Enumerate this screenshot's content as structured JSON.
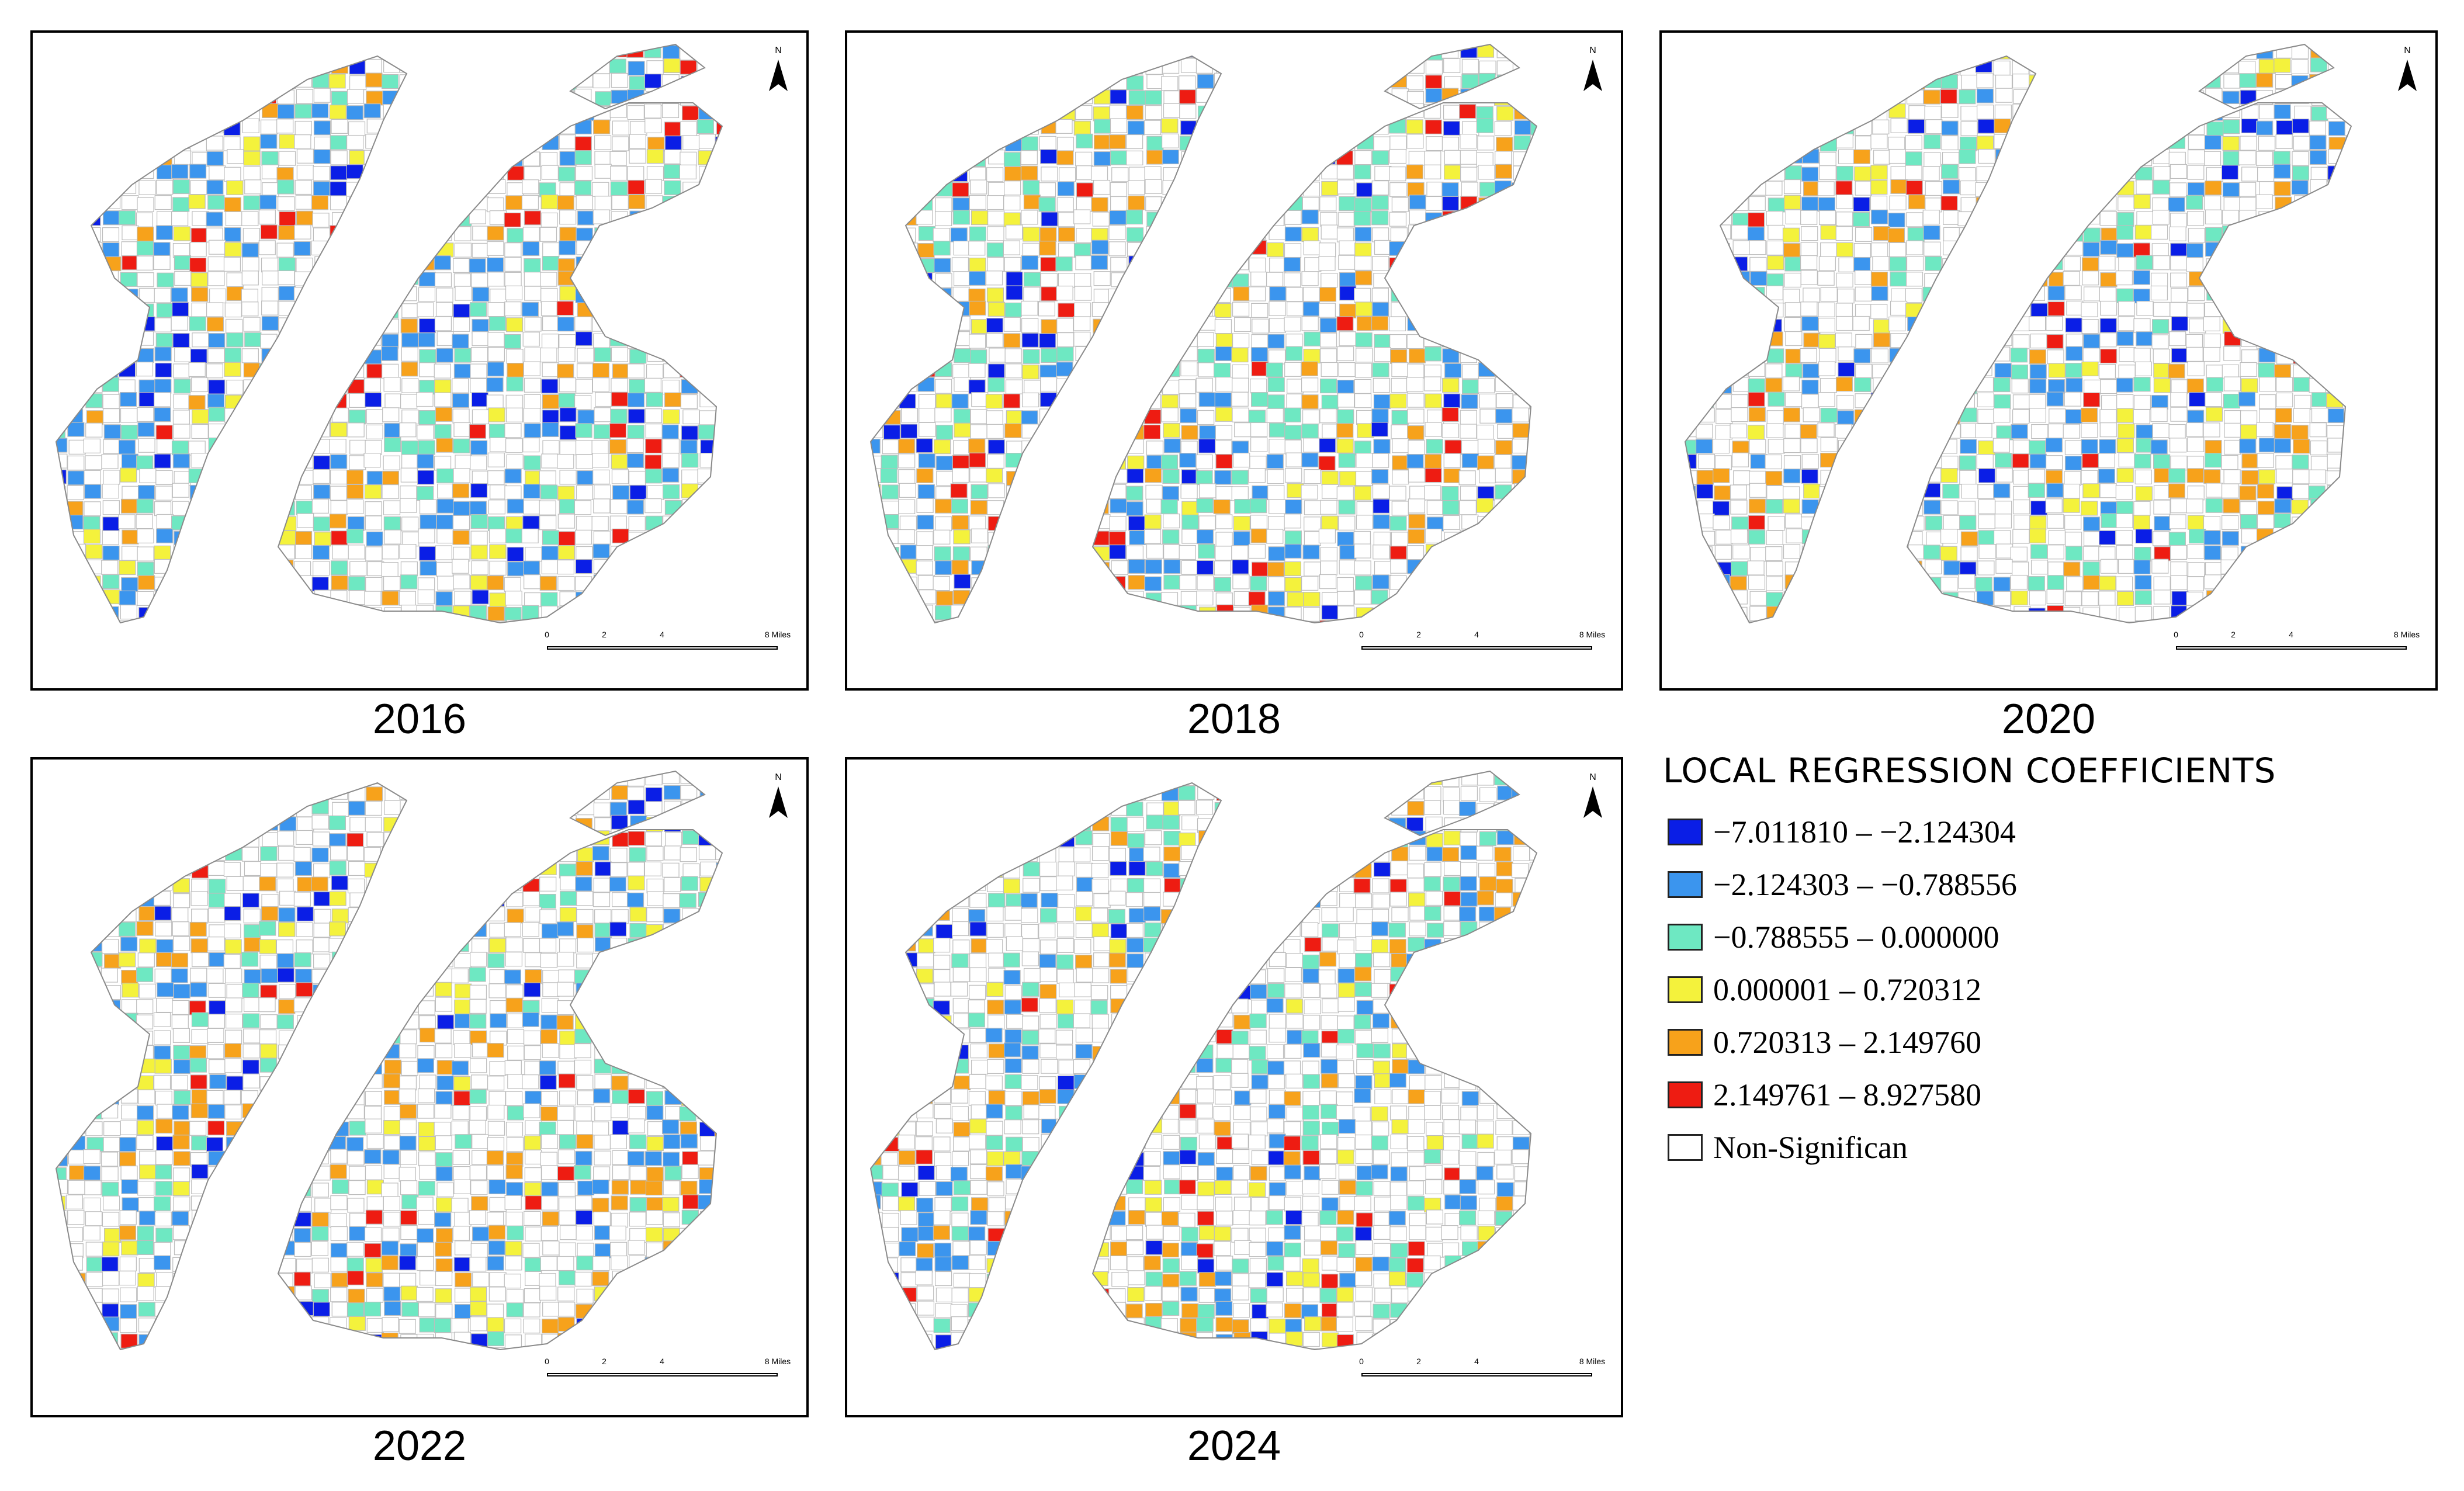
{
  "figure": {
    "panels": [
      {
        "year": "2016"
      },
      {
        "year": "2018"
      },
      {
        "year": "2020"
      },
      {
        "year": "2022"
      },
      {
        "year": "2024"
      }
    ],
    "north_label": "N",
    "scale_labels": [
      "0",
      "2",
      "4",
      "8 Miles"
    ]
  },
  "legend": {
    "title": "LOCAL REGRESSION COEFFICIENTS",
    "classes": [
      {
        "label": "−7.011810 – −2.124304",
        "color": "#0a1ee6"
      },
      {
        "label": "−2.124303 – −0.788556",
        "color": "#3b95ee"
      },
      {
        "label": "−0.788555 – 0.000000",
        "color": "#6ee8c2"
      },
      {
        "label": "0.000001 – 0.720312",
        "color": "#f4f23c"
      },
      {
        "label": "0.720313 – 2.149760",
        "color": "#f7a21b"
      },
      {
        "label": "2.149761 – 8.927580",
        "color": "#ee1c12"
      },
      {
        "label": "Non-Significan",
        "color": "#ffffff"
      }
    ]
  }
}
